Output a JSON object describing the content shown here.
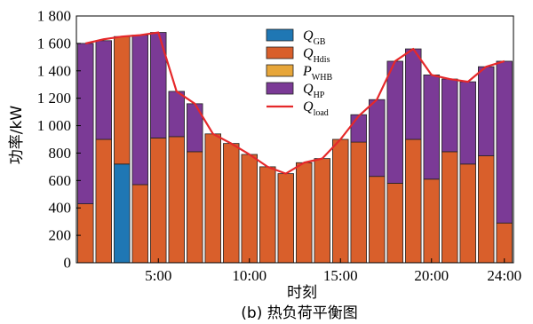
{
  "chart_data": {
    "type": "bar",
    "stacked": true,
    "caption": "(b) 热负荷平衡图",
    "xlabel": "时刻",
    "ylabel": "功率/kW",
    "ylim": [
      0,
      1800
    ],
    "yticks": [
      0,
      200,
      400,
      600,
      800,
      1000,
      1200,
      1400,
      1600,
      1800
    ],
    "ytick_labels": [
      "0",
      "200",
      "400",
      "600",
      "800",
      "1 000",
      "1 200",
      "1 400",
      "1 600",
      "1 800"
    ],
    "x": [
      1,
      2,
      3,
      4,
      5,
      6,
      7,
      8,
      9,
      10,
      11,
      12,
      13,
      14,
      15,
      16,
      17,
      18,
      19,
      20,
      21,
      22,
      23,
      24
    ],
    "xticks": [
      5,
      10,
      15,
      20,
      24
    ],
    "xtick_labels": [
      "5:00",
      "10:00",
      "15:00",
      "20:00",
      "24:00"
    ],
    "legend_position": "top-center",
    "series": [
      {
        "name": "Q_GB",
        "legend_main": "Q",
        "legend_sub": "GB",
        "color": "#1f77b4",
        "values": [
          0,
          0,
          720,
          0,
          0,
          0,
          0,
          0,
          0,
          0,
          0,
          0,
          0,
          0,
          0,
          0,
          0,
          0,
          0,
          0,
          0,
          0,
          0,
          0
        ]
      },
      {
        "name": "Q_Hdis",
        "legend_main": "Q",
        "legend_sub": "Hdis",
        "color": "#d95f2b",
        "values": [
          430,
          900,
          930,
          570,
          910,
          920,
          810,
          940,
          870,
          790,
          700,
          650,
          730,
          760,
          900,
          880,
          630,
          580,
          900,
          610,
          810,
          720,
          780,
          290
        ]
      },
      {
        "name": "P_WHB",
        "legend_main": "P",
        "legend_sub": "WHB",
        "color": "#e7a63a",
        "values": [
          0,
          0,
          0,
          0,
          0,
          0,
          0,
          0,
          0,
          0,
          0,
          0,
          0,
          0,
          0,
          0,
          0,
          0,
          0,
          0,
          0,
          0,
          0,
          0
        ]
      },
      {
        "name": "Q_HP",
        "legend_main": "Q",
        "legend_sub": "HP",
        "color": "#7b3a96",
        "values": [
          1170,
          720,
          0,
          1090,
          770,
          330,
          350,
          0,
          0,
          0,
          0,
          0,
          0,
          0,
          0,
          200,
          560,
          890,
          660,
          760,
          530,
          600,
          650,
          1180
        ]
      }
    ],
    "line": {
      "name": "Q_load",
      "legend_main": "Q",
      "legend_sub": "load",
      "color": "#e5282a",
      "values": [
        1600,
        1630,
        1650,
        1660,
        1680,
        1250,
        1160,
        940,
        870,
        790,
        700,
        650,
        730,
        760,
        900,
        1070,
        1190,
        1470,
        1560,
        1370,
        1340,
        1320,
        1430,
        1470
      ]
    }
  }
}
